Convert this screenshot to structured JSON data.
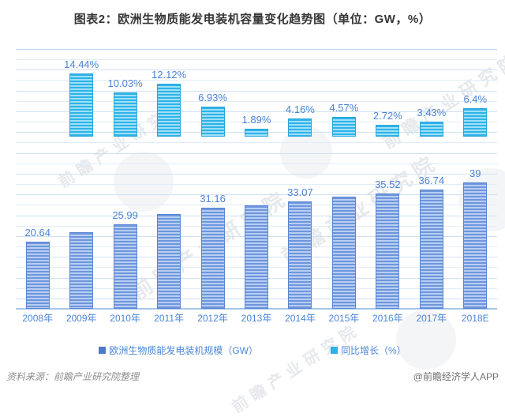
{
  "title": "图表2：欧洲生物质能发电装机容量变化趋势图（单位：GW，%）",
  "legend": {
    "items": [
      {
        "label": "欧洲生物质能发电装机规模（GW）",
        "color": "#4d79ca"
      },
      {
        "label": "同比增长（%）",
        "color": "#2fb0e6"
      }
    ]
  },
  "footer": {
    "source": "资料来源：前瞻产业研究院整理",
    "credit": "@前瞻经济学人APP"
  },
  "watermark_text": "前瞻产业研究院",
  "colors": {
    "gw_bar_dark": "#6f96dc",
    "gw_bar_light": "#b7cef2",
    "gw_bar_border": "#5b86d4",
    "growth_bar_dark": "#2fb3e8",
    "growth_bar_light": "#9edff7",
    "growth_bar_border": "#29a7dc",
    "data_label": "#4a83d6",
    "axis_label": "#4a86d8",
    "gridline": "#e2ecf8",
    "title_text": "#363636"
  },
  "chart_data": {
    "type": "bar",
    "title": "图表2：欧洲生物质能发电装机容量变化趋势图（单位：GW，%）",
    "categories": [
      "2008年",
      "2009年",
      "2010年",
      "2011年",
      "2012年",
      "2013年",
      "2014年",
      "2015年",
      "2016年",
      "2017年",
      "2018E"
    ],
    "series": [
      {
        "name": "欧洲生物质能发电装机规模（GW）",
        "unit": "GW",
        "values": [
          20.64,
          23.62,
          25.99,
          29.14,
          31.16,
          31.75,
          33.07,
          34.58,
          35.52,
          36.74,
          39
        ],
        "labels": [
          "20.64",
          null,
          "25.99",
          null,
          "31.16",
          null,
          "33.07",
          null,
          "35.52",
          "36.74",
          "39"
        ],
        "note": "unlabeled values estimated from bar heights / growth rates",
        "axis_range": [
          0,
          80
        ]
      },
      {
        "name": "同比增长（%）",
        "unit": "%",
        "values": [
          null,
          14.44,
          10.03,
          12.12,
          6.93,
          1.89,
          4.16,
          4.57,
          2.72,
          3.43,
          6.4
        ],
        "labels": [
          null,
          "14.44%",
          "10.03%",
          "12.12%",
          "6.93%",
          "1.89%",
          "4.16%",
          "4.57%",
          "2.72%",
          "3.43%",
          "6.4%"
        ],
        "axis_range": [
          0,
          20
        ]
      }
    ],
    "grid": true,
    "y_axis_tick_labels": "none (values shown as data labels only)",
    "legend_position": "bottom"
  }
}
